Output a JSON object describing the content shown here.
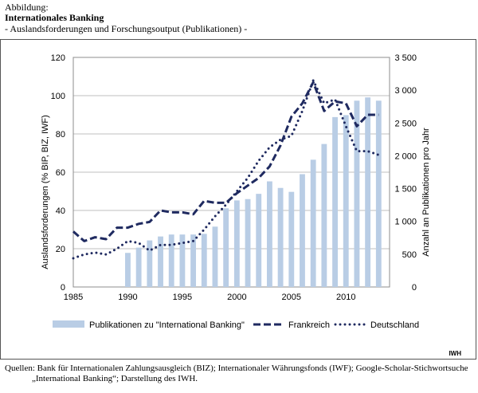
{
  "header": {
    "label": "Abbildung:",
    "title": "Internationales Banking",
    "subtitle": "- Auslandsforderungen und Forschungsoutput (Publikationen) -"
  },
  "chart_data": {
    "type": "bar+line",
    "x_ticks": [
      1985,
      1990,
      1995,
      2000,
      2005,
      2010
    ],
    "xlim": [
      1985,
      2014
    ],
    "ylabel_left": "Auslandsforderungen (% BIP, BIZ, IWF)",
    "ylim_left": [
      0,
      120
    ],
    "yticks_left": [
      "0",
      "20",
      "40",
      "60",
      "80",
      "100",
      "120"
    ],
    "ylabel_right": "Anzahl an Publikationen pro Jahr",
    "ylim_right": [
      0,
      3500
    ],
    "yticks_right": [
      "0",
      "500",
      "1 000",
      "1 500",
      "2 000",
      "2 500",
      "3 000",
      "3 500"
    ],
    "grid": "horizontal",
    "legend_position": "bottom",
    "bars": {
      "name": "Publikationen zu \"International Banking\"",
      "axis": "right",
      "color": "#b9cde5",
      "x": [
        1990,
        1991,
        1992,
        1993,
        1994,
        1995,
        1996,
        1997,
        1998,
        1999,
        2000,
        2001,
        2002,
        2003,
        2004,
        2005,
        2006,
        2007,
        2008,
        2009,
        2010,
        2011,
        2012,
        2013
      ],
      "values": [
        520,
        600,
        710,
        770,
        800,
        800,
        800,
        810,
        920,
        1200,
        1320,
        1340,
        1420,
        1610,
        1510,
        1450,
        1720,
        1940,
        2180,
        2590,
        2620,
        2840,
        2890,
        2840
      ]
    },
    "series": [
      {
        "name": "Frankreich",
        "axis": "left",
        "style": "dashed",
        "color": "#1f2a60",
        "x": [
          1985,
          1986,
          1987,
          1988,
          1989,
          1990,
          1991,
          1992,
          1993,
          1994,
          1995,
          1996,
          1997,
          1998,
          1999,
          2000,
          2001,
          2002,
          2003,
          2004,
          2005,
          2006,
          2007,
          2008,
          2009,
          2010,
          2011,
          2012,
          2013
        ],
        "values": [
          29,
          24,
          26,
          25,
          31,
          31,
          33,
          34,
          40,
          39,
          39,
          38,
          45,
          44,
          44,
          49,
          53,
          57,
          63,
          74,
          89,
          96,
          107,
          92,
          97,
          96,
          84,
          90,
          90
        ]
      },
      {
        "name": "Deutschland",
        "axis": "left",
        "style": "dotted",
        "color": "#1f2a60",
        "x": [
          1985,
          1986,
          1987,
          1988,
          1989,
          1990,
          1991,
          1992,
          1993,
          1994,
          1995,
          1996,
          1997,
          1998,
          1999,
          2000,
          2001,
          2002,
          2003,
          2004,
          2005,
          2006,
          2007,
          2008,
          2009,
          2010,
          2011,
          2012,
          2013
        ],
        "values": [
          15,
          17,
          18,
          17,
          20,
          24,
          23,
          19,
          22,
          22,
          23,
          24,
          30,
          37,
          43,
          50,
          57,
          66,
          73,
          77,
          79,
          92,
          108,
          96,
          98,
          84,
          71,
          71,
          69
        ]
      }
    ],
    "source_tag": "IWH"
  },
  "sources": {
    "line1": "Quellen: Bank für Internationalen Zahlungsausgleich (BIZ); Internationaler Währungsfonds (IWF); Google-Scholar-Stichwortsuche",
    "line2": "„International Banking“; Darstellung des IWH."
  }
}
